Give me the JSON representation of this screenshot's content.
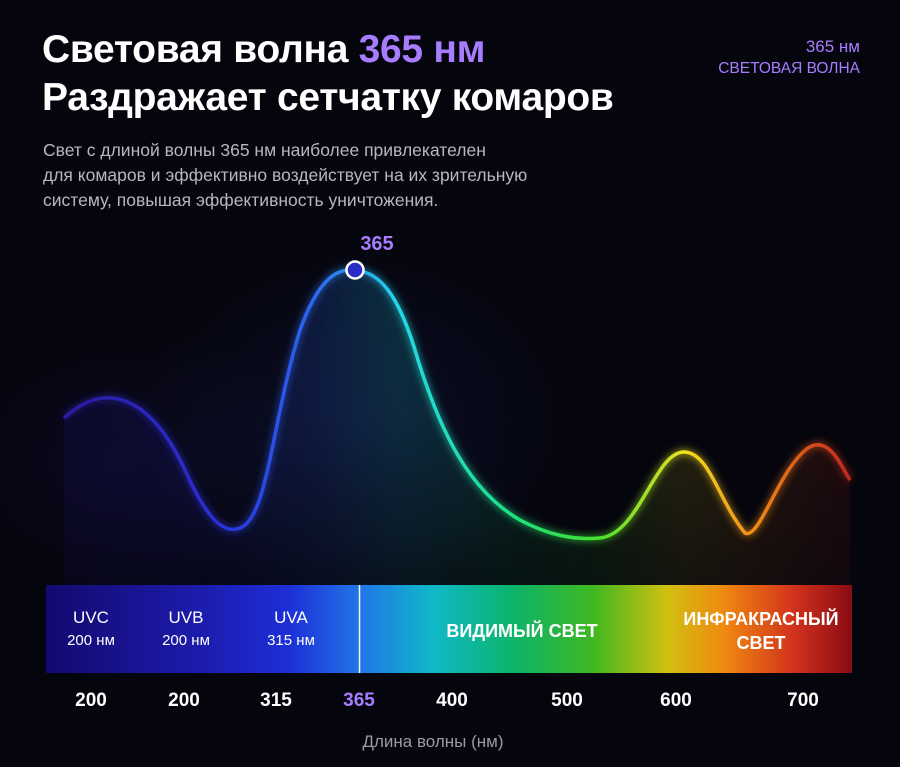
{
  "header": {
    "title_part1": "Световая волна ",
    "title_accent": "365 нм",
    "title_line2": "Раздражает сетчатку комаров",
    "subtitle_lines": [
      "Свет с длиной волны 365 нм наиболее привлекателен",
      "для комаров и эффективно воздействует на их зрительную",
      "систему, повышая эффективность уничтожения."
    ]
  },
  "badge": {
    "line1": "365 нм",
    "line2": "СВЕТОВАЯ ВОЛНА"
  },
  "colors": {
    "accent": "#a77cff",
    "background": "#05050d"
  },
  "chart_data": {
    "type": "line",
    "title": "",
    "xlabel": "Длина волны (нм)",
    "ylabel": "",
    "tick_labels": [
      "200",
      "200",
      "315",
      "365",
      "400",
      "500",
      "600",
      "700"
    ],
    "highlighted_tick": "365",
    "peak_label": "365",
    "relative_response": [
      {
        "x": "200",
        "y": 0.5
      },
      {
        "x": "200–315",
        "y": 0.05
      },
      {
        "x": "365",
        "y": 1.0
      },
      {
        "x": "500",
        "y": 0.0
      },
      {
        "x": "600",
        "y": 0.35
      },
      {
        "x": "650",
        "y": 0.02
      },
      {
        "x": "700",
        "y": 0.35
      }
    ],
    "grid": false,
    "bands": [
      {
        "name": "UVC",
        "range": "200 нм"
      },
      {
        "name": "UVB",
        "range": "200 нм"
      },
      {
        "name": "UVA",
        "range": "315 нм"
      },
      {
        "name": "ВИДИМЫЙ СВЕТ",
        "range": ""
      },
      {
        "name": "ИНФРАКРАСНЫЙ СВЕТ",
        "range": ""
      }
    ]
  }
}
